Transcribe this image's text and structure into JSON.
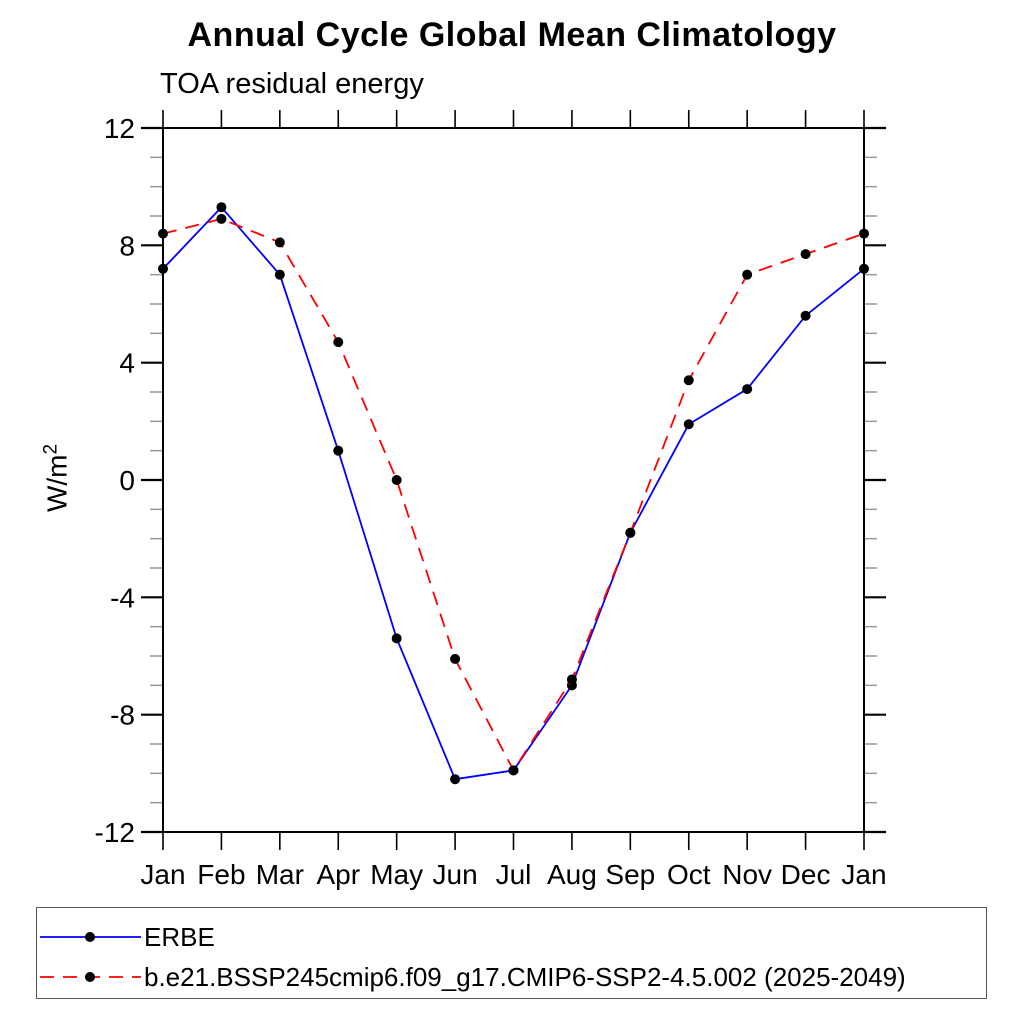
{
  "figure": {
    "title": "Annual Cycle Global Mean Climatology",
    "subtitle": "TOA residual energy",
    "ylabel_base": "W/m",
    "ylabel_exponent": "2"
  },
  "legend": {
    "entries": [
      {
        "label": "ERBE",
        "line_color": "#0000ff",
        "line_style": "solid",
        "marker": "filled-circle",
        "marker_color": "#000000"
      },
      {
        "label": "b.e21.BSSP245cmip6.f09_g17.CMIP6-SSP2-4.5.002 (2025-2049)",
        "line_color": "#ff0000",
        "line_style": "dashed",
        "marker": "filled-circle",
        "marker_color": "#000000"
      }
    ]
  },
  "chart_data": {
    "type": "line",
    "title": "Annual Cycle Global Mean Climatology",
    "subtitle": "TOA residual energy",
    "xlabel": "",
    "ylabel": "W/m²",
    "categories": [
      "Jan",
      "Feb",
      "Mar",
      "Apr",
      "May",
      "Jun",
      "Jul",
      "Aug",
      "Sep",
      "Oct",
      "Nov",
      "Dec",
      "Jan"
    ],
    "series": [
      {
        "name": "ERBE",
        "color": "#0000ff",
        "style": "solid",
        "marker": "filled-circle",
        "marker_color": "#000000",
        "values": [
          7.2,
          9.3,
          7.0,
          1.0,
          -5.4,
          -10.2,
          -9.9,
          -7.0,
          -1.8,
          1.9,
          3.1,
          5.6,
          7.2
        ]
      },
      {
        "name": "b.e21.BSSP245cmip6.f09_g17.CMIP6-SSP2-4.5.002 (2025-2049)",
        "color": "#ff0000",
        "style": "dashed",
        "marker": "filled-circle",
        "marker_color": "#000000",
        "values": [
          8.4,
          8.9,
          8.1,
          4.7,
          0.0,
          -6.1,
          -9.9,
          -6.8,
          -1.8,
          3.4,
          7.0,
          7.7,
          8.4
        ]
      }
    ],
    "ylim": [
      -12,
      12
    ],
    "y_major_ticks": [
      12,
      8,
      4,
      0,
      -4,
      -8,
      -12
    ],
    "y_minor_step": 1,
    "grid": false,
    "frame": "box-with-outward-ticks",
    "legend_position": "bottom-left-box"
  }
}
